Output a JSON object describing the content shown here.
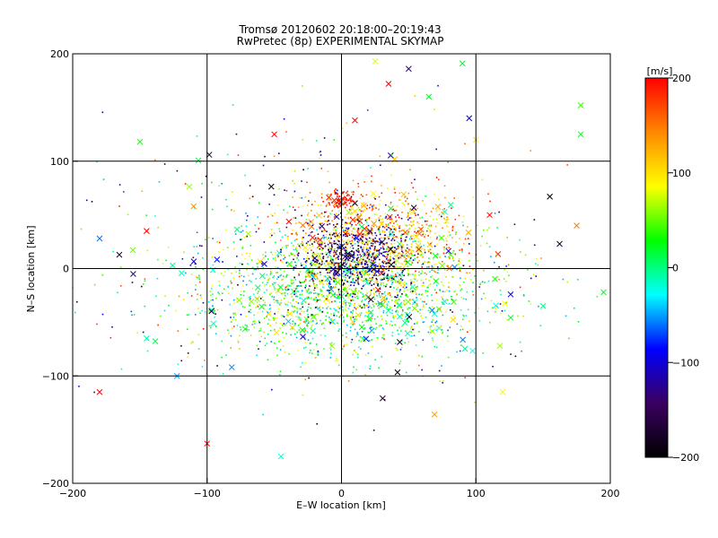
{
  "chart_data": {
    "type": "scatter",
    "title": "Tromsø 20120602 20:18:00–20:19:43",
    "subtitle": "RwPretec (8p) EXPERIMENTAL SKYMAP",
    "xlabel": "E–W location [km]",
    "ylabel": "N–S location [km]",
    "xlim": [
      -200,
      200
    ],
    "ylim": [
      -200,
      200
    ],
    "xticks": [
      -200,
      -100,
      0,
      100,
      200
    ],
    "yticks": [
      -200,
      -100,
      0,
      100,
      200
    ],
    "grid": true,
    "colorbar": {
      "label": "[m/s]",
      "range": [
        -200,
        200
      ],
      "ticks": [
        200,
        100,
        0,
        -100,
        -200
      ],
      "colormap": [
        "#000000",
        "#3a0060",
        "#0000ff",
        "#00ffff",
        "#00ff00",
        "#ffff00",
        "#ff8800",
        "#ff0000"
      ]
    },
    "clusters": [
      {
        "cx": 0,
        "cy": -25,
        "sx": 55,
        "sy": 28,
        "n": 1500,
        "vmin": -60,
        "vmax": 110
      },
      {
        "cx": 25,
        "cy": 25,
        "sx": 35,
        "sy": 25,
        "n": 900,
        "vmin": 60,
        "vmax": 200
      },
      {
        "cx": 10,
        "cy": 10,
        "sx": 22,
        "sy": 18,
        "n": 500,
        "vmin": -200,
        "vmax": -80
      },
      {
        "cx": 0,
        "cy": 65,
        "sx": 5,
        "sy": 4,
        "n": 80,
        "vmin": 180,
        "vmax": 200
      },
      {
        "cx": -20,
        "cy": 5,
        "sx": 80,
        "sy": 60,
        "n": 500,
        "vmin": -200,
        "vmax": 200
      }
    ],
    "crosses": [
      {
        "x": 50,
        "y": 186,
        "v": -130
      },
      {
        "x": 35,
        "y": 172,
        "v": 200
      },
      {
        "x": 90,
        "y": 191,
        "v": 20
      },
      {
        "x": 25,
        "y": 193,
        "v": 80
      },
      {
        "x": -150,
        "y": 118,
        "v": 30
      },
      {
        "x": -110,
        "y": 58,
        "v": 140
      },
      {
        "x": -145,
        "y": 35,
        "v": 200
      },
      {
        "x": -180,
        "y": 28,
        "v": -60
      },
      {
        "x": -155,
        "y": -5,
        "v": -130
      },
      {
        "x": -145,
        "y": -65,
        "v": -10
      },
      {
        "x": -180,
        "y": -115,
        "v": 200
      },
      {
        "x": -100,
        "y": -163,
        "v": 200
      },
      {
        "x": -45,
        "y": -175,
        "v": -20
      },
      {
        "x": 178,
        "y": 152,
        "v": 40
      },
      {
        "x": 178,
        "y": 125,
        "v": 20
      },
      {
        "x": 155,
        "y": 67,
        "v": -200
      },
      {
        "x": 175,
        "y": 40,
        "v": 150
      },
      {
        "x": 195,
        "y": -22,
        "v": 20
      },
      {
        "x": 150,
        "y": -35,
        "v": 0
      },
      {
        "x": 120,
        "y": -115,
        "v": 90
      },
      {
        "x": 95,
        "y": 140,
        "v": -90
      },
      {
        "x": 100,
        "y": 120,
        "v": 100
      },
      {
        "x": 65,
        "y": 160,
        "v": 20
      },
      {
        "x": 10,
        "y": 138,
        "v": 200
      },
      {
        "x": -50,
        "y": 125,
        "v": 200
      }
    ]
  }
}
